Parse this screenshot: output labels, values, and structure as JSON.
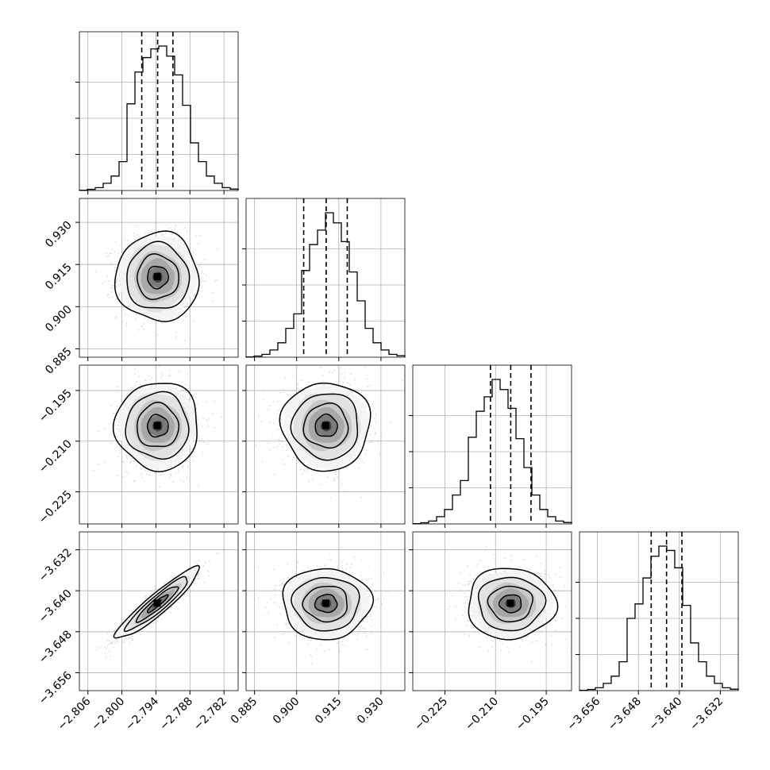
{
  "chart_data": {
    "type": "corner",
    "parameters": [
      {
        "ylim": [
          0,
          1.0
        ],
        "quantiles": [
          -2.7965,
          -2.7937,
          -2.791
        ],
        "hist": [
          0.002,
          0.008,
          0.02,
          0.05,
          0.1,
          0.2,
          0.6,
          0.82,
          0.92,
          0.98,
          1.0,
          0.93,
          0.8,
          0.59,
          0.33,
          0.2,
          0.1,
          0.05,
          0.02,
          0.01
        ],
        "ticks": [
          -2.806,
          -2.8,
          -2.794,
          -2.788,
          -2.782
        ],
        "tick_labels": [
          "−2.806",
          "−2.800",
          "−2.794",
          "−2.788",
          "−2.782"
        ],
        "range": [
          -2.8075,
          -2.7795
        ]
      },
      {
        "ylim": [
          0,
          1.0
        ],
        "quantiles": [
          0.9025,
          0.9105,
          0.918
        ],
        "hist": [
          0.002,
          0.008,
          0.02,
          0.05,
          0.1,
          0.2,
          0.3,
          0.6,
          0.78,
          0.88,
          1.0,
          0.93,
          0.8,
          0.59,
          0.39,
          0.2,
          0.1,
          0.05,
          0.02,
          0.01
        ],
        "ticks": [
          0.885,
          0.9,
          0.915,
          0.93
        ],
        "tick_labels": [
          "0.885",
          "0.900",
          "0.915",
          "0.930"
        ],
        "range": [
          0.882,
          0.9385
        ]
      },
      {
        "ylim": [
          0,
          1.0
        ],
        "quantiles": [
          -0.2115,
          -0.2055,
          -0.1995
        ],
        "hist": [
          0.002,
          0.008,
          0.02,
          0.05,
          0.1,
          0.2,
          0.3,
          0.6,
          0.78,
          0.88,
          1.0,
          0.93,
          0.8,
          0.59,
          0.39,
          0.2,
          0.1,
          0.05,
          0.02,
          0.01
        ],
        "ticks": [
          -0.225,
          -0.21,
          -0.195
        ],
        "tick_labels": [
          "−0.225",
          "−0.210",
          "−0.195"
        ],
        "range": [
          -0.2345,
          -0.1875
        ]
      },
      {
        "ylim": [
          0,
          1.0
        ],
        "quantiles": [
          -3.6455,
          -3.6425,
          -3.6395
        ],
        "hist": [
          0.002,
          0.008,
          0.02,
          0.05,
          0.1,
          0.2,
          0.5,
          0.6,
          0.78,
          0.93,
          1.0,
          0.97,
          0.85,
          0.59,
          0.33,
          0.2,
          0.1,
          0.05,
          0.02,
          0.01
        ],
        "ticks": [
          -3.656,
          -3.648,
          -3.64,
          -3.632
        ],
        "tick_labels": [
          "−3.656",
          "−3.648",
          "−3.640",
          "−3.632"
        ],
        "range": [
          -3.6595,
          -3.6285
        ]
      }
    ],
    "pairs": [
      {
        "row": 1,
        "col": 0,
        "mean": [
          -2.7937,
          0.9105
        ],
        "sd": [
          0.0035,
          0.0075
        ],
        "corr": 0.0
      },
      {
        "row": 2,
        "col": 0,
        "mean": [
          -2.7937,
          -0.2055
        ],
        "sd": [
          0.0035,
          0.0062
        ],
        "corr": 0.0
      },
      {
        "row": 2,
        "col": 1,
        "mean": [
          0.9105,
          -0.2055
        ],
        "sd": [
          0.0075,
          0.0062
        ],
        "corr": 0.0
      },
      {
        "row": 3,
        "col": 0,
        "mean": [
          -2.7937,
          -3.6425
        ],
        "sd": [
          0.0035,
          0.0033
        ],
        "corr": 0.93
      },
      {
        "row": 3,
        "col": 1,
        "mean": [
          0.9105,
          -3.6425
        ],
        "sd": [
          0.0075,
          0.0033
        ],
        "corr": 0.0
      },
      {
        "row": 3,
        "col": 2,
        "mean": [
          -0.2055,
          -3.6425
        ],
        "sd": [
          0.0062,
          0.0033
        ],
        "corr": 0.0
      }
    ],
    "grid": true,
    "contour_levels_sigma": [
      0.5,
      1.0,
      1.5,
      2.0
    ]
  }
}
